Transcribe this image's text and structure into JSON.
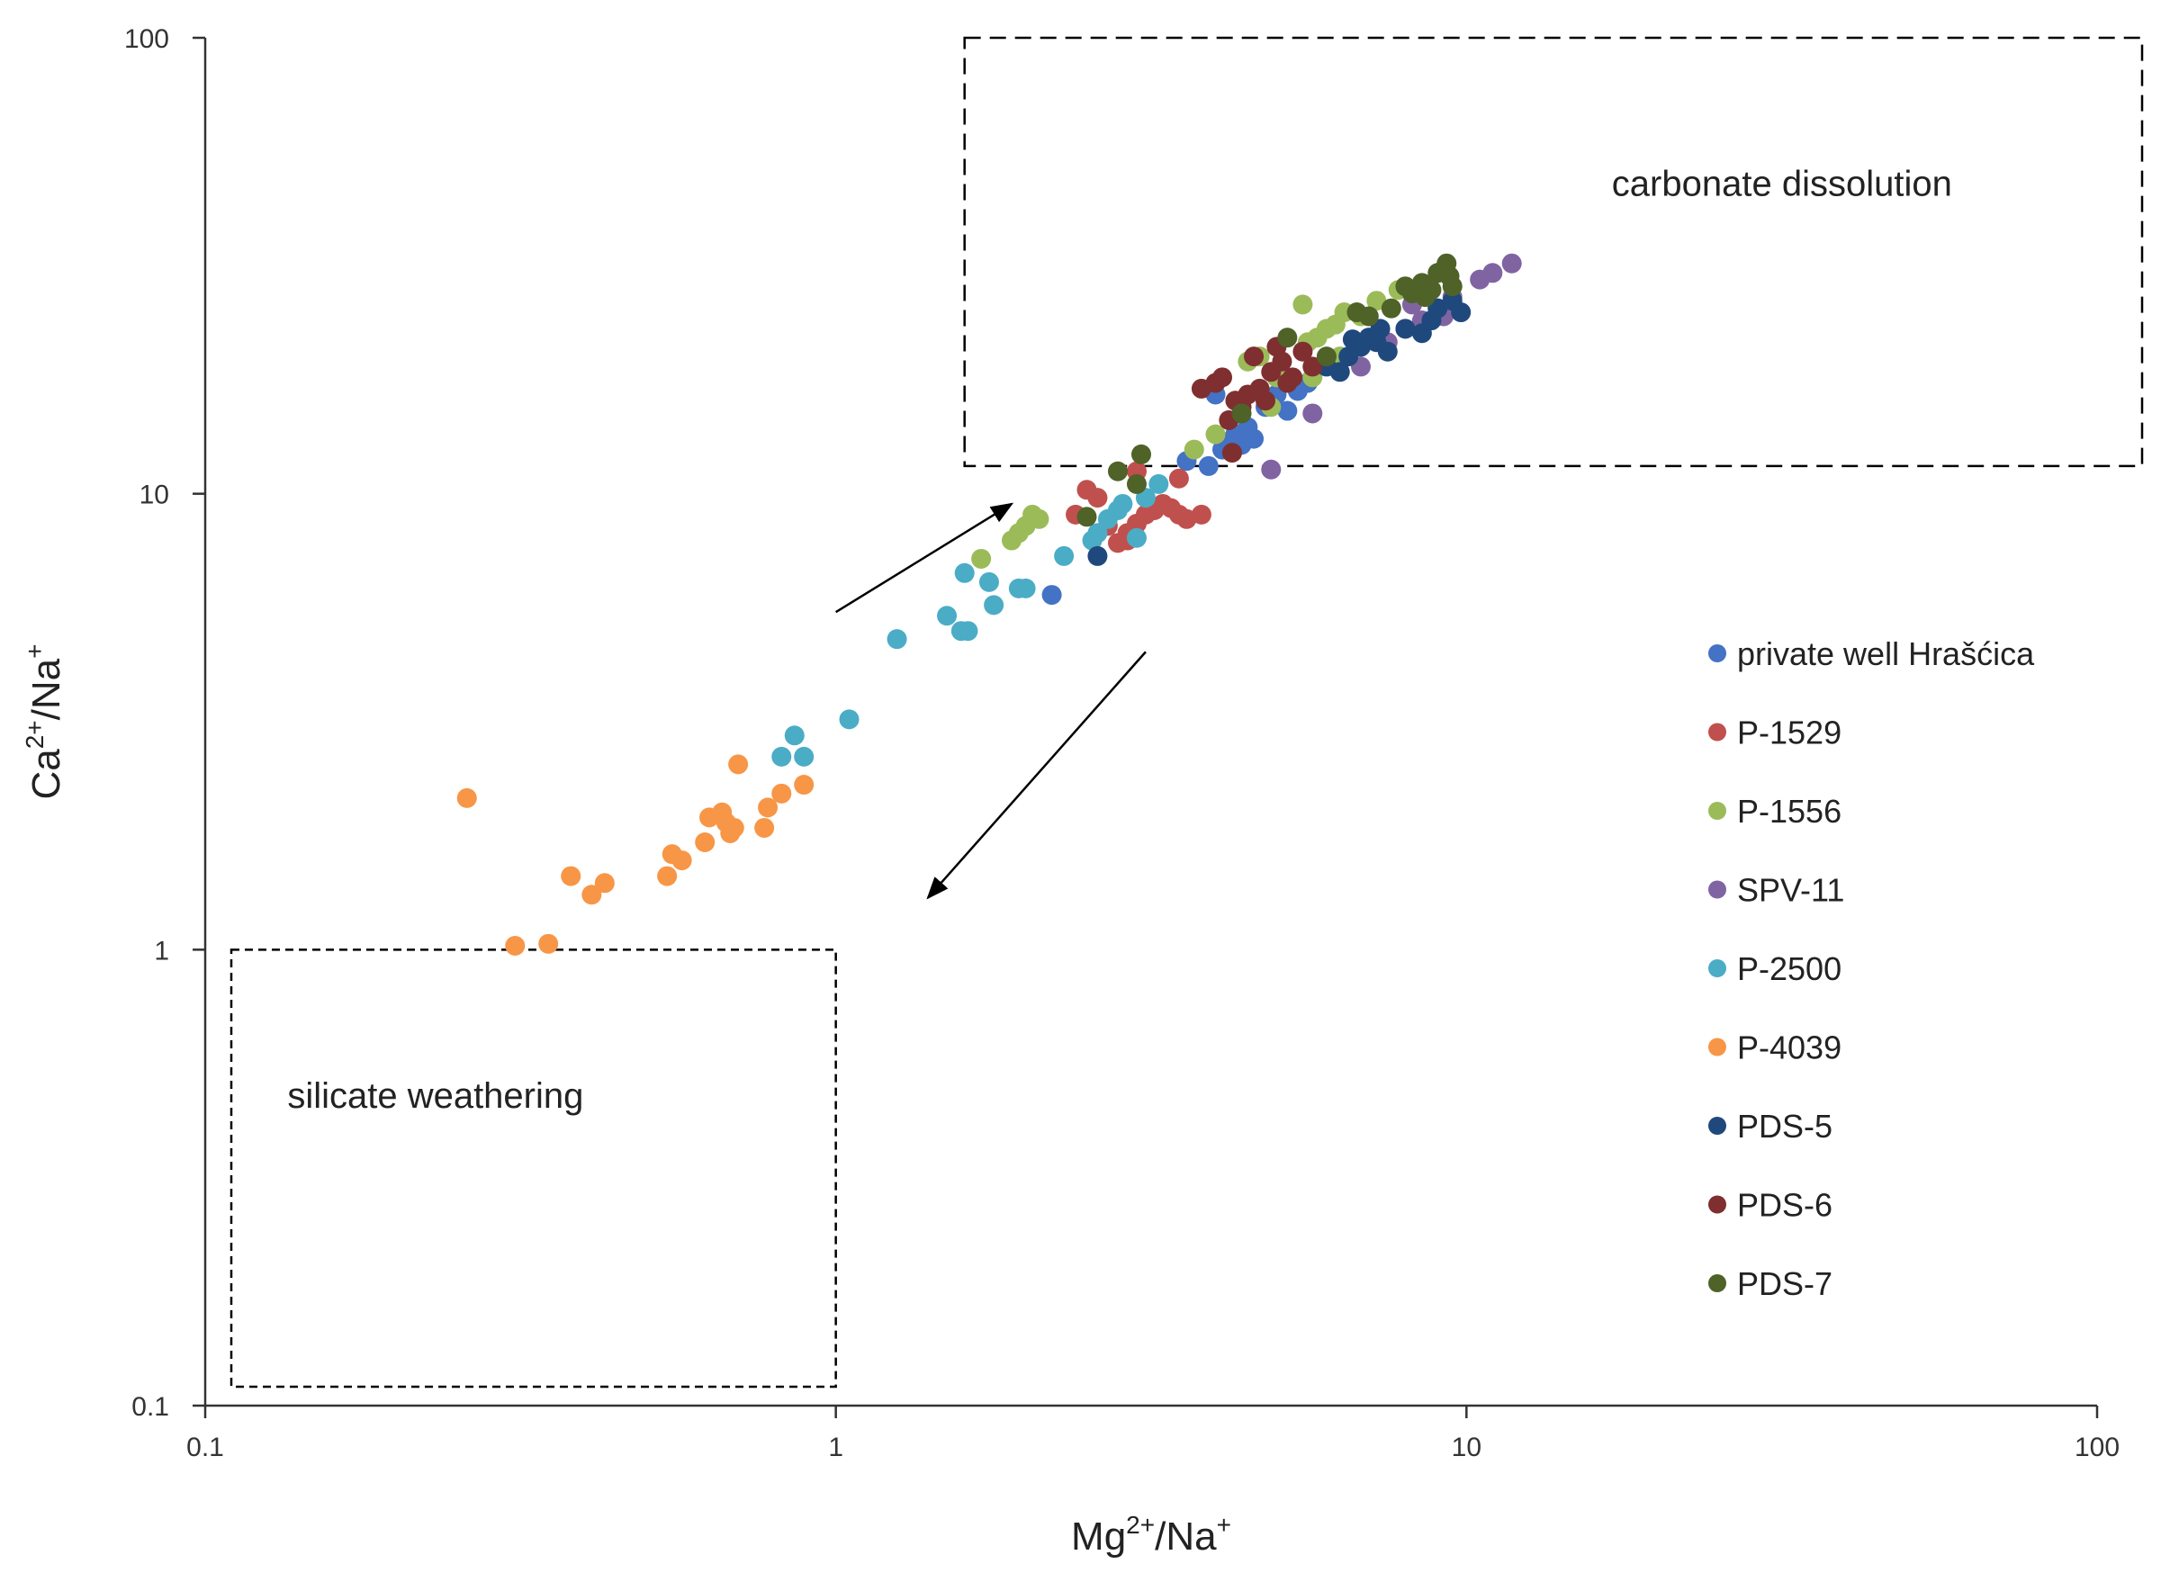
{
  "chart_data": {
    "type": "scatter",
    "x_scale": "log",
    "y_scale": "log",
    "xlim": [
      0.1,
      100
    ],
    "ylim": [
      0.1,
      100
    ],
    "xlabel": {
      "base1": "Mg",
      "sup1": "2+",
      "base2": "/Na",
      "sup2": "+"
    },
    "ylabel": {
      "base1": "Ca",
      "sup1": "2+",
      "base2": "/Na",
      "sup2": "+"
    },
    "x_ticks": [
      "0.1",
      "1",
      "10",
      "100"
    ],
    "y_ticks": [
      "0.1",
      "1",
      "10",
      "100"
    ],
    "annotations": [
      {
        "text": "carbonate dissolution",
        "box_x": [
          1.6,
          100
        ],
        "box_y": [
          11.5,
          100
        ],
        "label_at": [
          17,
          45
        ]
      },
      {
        "text": "silicate weathering",
        "box_x": [
          0.11,
          1.0
        ],
        "box_y": [
          0.11,
          1.0
        ],
        "label_at": [
          0.135,
          0.45
        ]
      }
    ],
    "arrows": [
      {
        "from": [
          1.0,
          5.5
        ],
        "to": [
          1.9,
          9.5
        ],
        "direction": "up-right"
      },
      {
        "from": [
          3.1,
          4.5
        ],
        "to": [
          1.4,
          1.3
        ],
        "direction": "down-left"
      }
    ],
    "legend_position": "right",
    "series": [
      {
        "name": "private well Hrašćica",
        "color": "#4472C4",
        "points": [
          [
            2.2,
            6.0
          ],
          [
            3.9,
            11.5
          ],
          [
            4.0,
            16.5
          ],
          [
            4.1,
            12.5
          ],
          [
            4.2,
            13.0
          ],
          [
            4.3,
            13.5
          ],
          [
            4.4,
            12.8
          ],
          [
            4.5,
            14.0
          ],
          [
            4.6,
            13.2
          ],
          [
            4.8,
            15.5
          ],
          [
            5.0,
            16.5
          ],
          [
            5.2,
            15.2
          ],
          [
            5.4,
            16.8
          ],
          [
            5.6,
            17.5
          ],
          [
            3.6,
            11.8
          ]
        ]
      },
      {
        "name": "P-1529",
        "color": "#C0504D",
        "points": [
          [
            2.4,
            9.0
          ],
          [
            2.5,
            10.2
          ],
          [
            2.6,
            9.8
          ],
          [
            2.7,
            8.5
          ],
          [
            2.8,
            7.8
          ],
          [
            2.9,
            8.2
          ],
          [
            3.0,
            8.6
          ],
          [
            3.1,
            9.0
          ],
          [
            3.2,
            9.2
          ],
          [
            3.3,
            9.5
          ],
          [
            3.4,
            9.3
          ],
          [
            3.5,
            9.0
          ],
          [
            3.6,
            8.8
          ],
          [
            3.8,
            9.0
          ],
          [
            3.0,
            11.2
          ],
          [
            3.5,
            10.8
          ],
          [
            2.9,
            7.9
          ]
        ]
      },
      {
        "name": "P-1556",
        "color": "#9BBB59",
        "points": [
          [
            1.7,
            7.2
          ],
          [
            1.9,
            7.9
          ],
          [
            1.95,
            8.2
          ],
          [
            2.0,
            8.5
          ],
          [
            2.05,
            9.0
          ],
          [
            2.1,
            8.8
          ],
          [
            3.7,
            12.5
          ],
          [
            4.0,
            13.5
          ],
          [
            4.3,
            16.0
          ],
          [
            4.5,
            19.5
          ],
          [
            4.7,
            20.0
          ],
          [
            4.9,
            15.5
          ],
          [
            5.0,
            18.0
          ],
          [
            5.5,
            26.0
          ],
          [
            5.6,
            21.5
          ],
          [
            5.8,
            22.0
          ],
          [
            6.0,
            23.0
          ],
          [
            6.2,
            23.5
          ],
          [
            6.4,
            25.0
          ],
          [
            6.8,
            24.5
          ],
          [
            7.2,
            26.5
          ],
          [
            7.8,
            28.0
          ],
          [
            5.7,
            18.0
          ],
          [
            6.3,
            20.0
          ]
        ]
      },
      {
        "name": "SPV-11",
        "color": "#8064A2",
        "points": [
          [
            4.9,
            11.3
          ],
          [
            5.7,
            15.0
          ],
          [
            6.8,
            19.0
          ],
          [
            7.5,
            21.5
          ],
          [
            8.0,
            23.0
          ],
          [
            8.5,
            24.0
          ],
          [
            9.0,
            25.5
          ],
          [
            9.5,
            27.0
          ],
          [
            10.5,
            29.5
          ],
          [
            11.0,
            30.5
          ],
          [
            11.8,
            32.0
          ],
          [
            8.2,
            26.0
          ],
          [
            9.2,
            24.5
          ]
        ]
      },
      {
        "name": "P-2500",
        "color": "#4BACC6",
        "points": [
          [
            0.82,
            2.65
          ],
          [
            0.86,
            2.95
          ],
          [
            0.89,
            2.65
          ],
          [
            1.05,
            3.2
          ],
          [
            1.25,
            4.8
          ],
          [
            1.5,
            5.4
          ],
          [
            1.58,
            5.0
          ],
          [
            1.62,
            5.0
          ],
          [
            1.6,
            6.7
          ],
          [
            1.75,
            6.4
          ],
          [
            1.78,
            5.7
          ],
          [
            1.95,
            6.2
          ],
          [
            2.0,
            6.2
          ],
          [
            2.3,
            7.3
          ],
          [
            2.6,
            8.2
          ],
          [
            2.7,
            8.8
          ],
          [
            2.8,
            9.2
          ],
          [
            3.0,
            8.0
          ],
          [
            3.1,
            9.8
          ],
          [
            3.25,
            10.5
          ],
          [
            2.55,
            7.9
          ],
          [
            2.85,
            9.5
          ]
        ]
      },
      {
        "name": "P-4039",
        "color": "#F79646",
        "points": [
          [
            0.26,
            2.15
          ],
          [
            0.31,
            1.02
          ],
          [
            0.35,
            1.03
          ],
          [
            0.38,
            1.45
          ],
          [
            0.41,
            1.32
          ],
          [
            0.43,
            1.4
          ],
          [
            0.54,
            1.45
          ],
          [
            0.55,
            1.62
          ],
          [
            0.57,
            1.57
          ],
          [
            0.62,
            1.72
          ],
          [
            0.63,
            1.95
          ],
          [
            0.66,
            2.0
          ],
          [
            0.67,
            1.9
          ],
          [
            0.68,
            1.8
          ],
          [
            0.69,
            1.85
          ],
          [
            0.7,
            2.55
          ],
          [
            0.77,
            1.85
          ],
          [
            0.78,
            2.05
          ],
          [
            0.82,
            2.2
          ],
          [
            0.89,
            2.3
          ]
        ]
      },
      {
        "name": "PDS-5",
        "color": "#1F497D",
        "points": [
          [
            2.6,
            7.3
          ],
          [
            6.0,
            19.0
          ],
          [
            6.3,
            18.5
          ],
          [
            6.5,
            20.0
          ],
          [
            6.8,
            21.0
          ],
          [
            7.0,
            22.0
          ],
          [
            7.2,
            21.5
          ],
          [
            7.5,
            20.5
          ],
          [
            8.0,
            23.0
          ],
          [
            8.5,
            22.5
          ],
          [
            8.8,
            24.0
          ],
          [
            9.0,
            25.5
          ],
          [
            9.5,
            26.5
          ],
          [
            9.8,
            25.0
          ],
          [
            6.6,
            21.8
          ],
          [
            7.3,
            23.0
          ]
        ]
      },
      {
        "name": "PDS-6",
        "color": "#7F2F2F",
        "points": [
          [
            3.8,
            17.0
          ],
          [
            4.0,
            17.5
          ],
          [
            4.1,
            18.0
          ],
          [
            4.2,
            14.5
          ],
          [
            4.25,
            12.3
          ],
          [
            4.3,
            16.0
          ],
          [
            4.5,
            16.5
          ],
          [
            4.6,
            20.0
          ],
          [
            4.7,
            17.0
          ],
          [
            4.8,
            16.0
          ],
          [
            4.9,
            18.5
          ],
          [
            5.0,
            21.0
          ],
          [
            5.1,
            19.5
          ],
          [
            5.2,
            17.5
          ],
          [
            5.3,
            18.0
          ],
          [
            5.5,
            20.5
          ],
          [
            5.7,
            19.0
          ],
          [
            4.4,
            15.5
          ]
        ]
      },
      {
        "name": "PDS-7",
        "color": "#4F6228",
        "points": [
          [
            2.5,
            8.9
          ],
          [
            2.8,
            11.2
          ],
          [
            3.0,
            10.5
          ],
          [
            3.05,
            12.2
          ],
          [
            4.4,
            15.0
          ],
          [
            5.2,
            22.0
          ],
          [
            6.0,
            20.0
          ],
          [
            6.7,
            25.0
          ],
          [
            7.0,
            24.5
          ],
          [
            7.6,
            25.5
          ],
          [
            8.0,
            28.5
          ],
          [
            8.2,
            27.5
          ],
          [
            8.5,
            29.0
          ],
          [
            8.8,
            28.0
          ],
          [
            9.0,
            30.5
          ],
          [
            9.2,
            31.0
          ],
          [
            9.4,
            30.0
          ],
          [
            9.5,
            28.5
          ],
          [
            9.3,
            32.0
          ],
          [
            8.6,
            27.0
          ]
        ]
      }
    ]
  }
}
